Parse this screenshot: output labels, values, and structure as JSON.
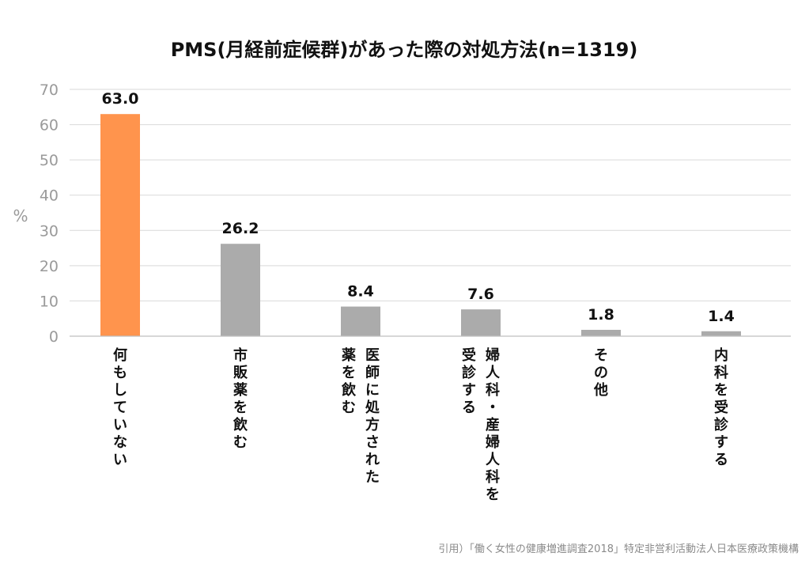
{
  "chart_data": {
    "type": "bar",
    "title": "PMS(月経前症候群)があった際の対処方法(n=1319)",
    "ylabel": "%",
    "ylim": [
      0,
      70
    ],
    "yticks": [
      0,
      10,
      20,
      30,
      40,
      50,
      60,
      70
    ],
    "grid": true,
    "categories": [
      [
        "何もしていない"
      ],
      [
        "市販薬を飲む"
      ],
      [
        "医師に処方された",
        "薬を飲む"
      ],
      [
        "婦人科・産婦人科を",
        "受診する"
      ],
      [
        "その他"
      ],
      [
        "内科を受診する"
      ]
    ],
    "values": [
      63.0,
      26.2,
      8.4,
      7.6,
      1.8,
      1.4
    ],
    "value_labels": [
      "63.0",
      "26.2",
      "8.4",
      "7.6",
      "1.8",
      "1.4"
    ],
    "highlight_index": 0,
    "colors": {
      "highlight": "#FF944D",
      "default": "#ABABAB"
    }
  },
  "source": "引用）「働く女性の健康増進調査2018」特定非営利活動法人日本医療政策機構"
}
